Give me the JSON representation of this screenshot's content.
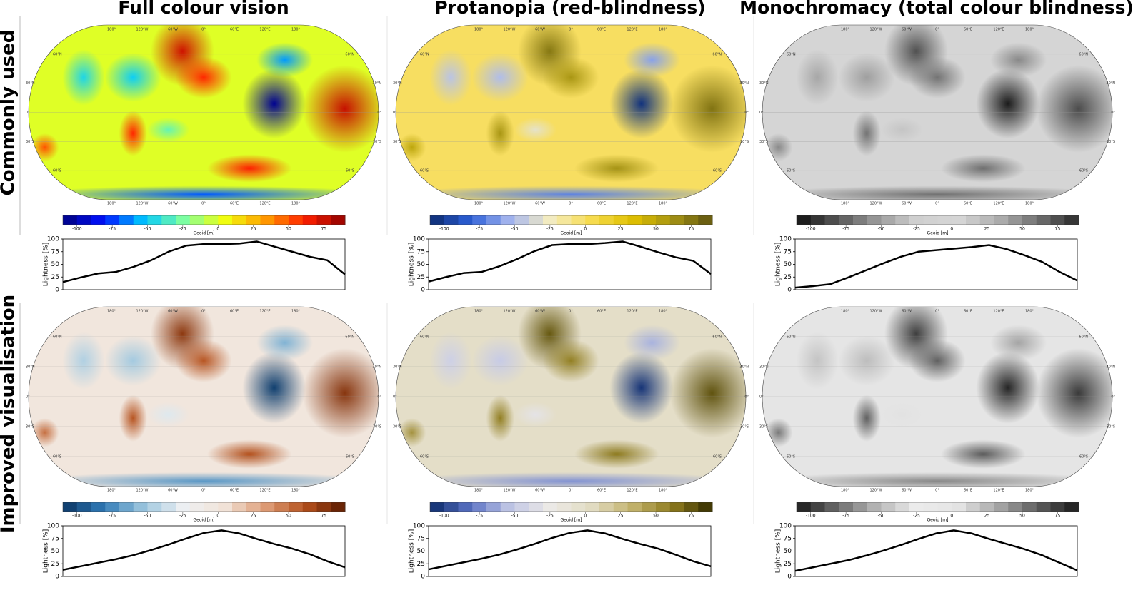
{
  "column_titles": [
    "Full colour vision",
    "Protanopia (red-blindness)",
    "Monochromacy (total colour blindness)"
  ],
  "row_labels": [
    "Commonly used",
    "Improved visualisation"
  ],
  "map_labels": {
    "lon": [
      "180°",
      "120°W",
      "60°W",
      "0°",
      "60°E",
      "120°E",
      "180°"
    ],
    "lat": [
      "60°N",
      "30°N",
      "0°",
      "30°S",
      "60°S"
    ]
  },
  "colorbar": {
    "label": "Geoid [m]",
    "lim": [
      -110,
      90
    ],
    "ticks": [
      -100,
      -75,
      -50,
      -25,
      0,
      25,
      50,
      75
    ]
  },
  "colormaps": [
    [
      "#00007f",
      "#0010ff",
      "#00c8ff",
      "#7fffa0",
      "#f0ff10",
      "#ffa000",
      "#ff2000",
      "#8f0000"
    ],
    [
      "#0d2b6e",
      "#2c5fd8",
      "#a8b8ef",
      "#f4ecc0",
      "#f7dc50",
      "#e0c000",
      "#a69414",
      "#5e5410"
    ],
    [
      "#111111",
      "#555555",
      "#9a9a9a",
      "#d0d0d0",
      "#d6d6d6",
      "#b0b0b0",
      "#707070",
      "#2a2a2a"
    ],
    [
      "#0b3564",
      "#2f7ab6",
      "#9cc6de",
      "#eef0f2",
      "#f1e4d9",
      "#df9f7a",
      "#b5511d",
      "#5a1a00"
    ],
    [
      "#0b2a6a",
      "#5a72c4",
      "#c3c8e6",
      "#eceae6",
      "#e2dcc3",
      "#c4b46f",
      "#8f7c1f",
      "#332c00"
    ],
    [
      "#1a1a1a",
      "#6a6a6a",
      "#b8b8b8",
      "#ececec",
      "#e4e4e4",
      "#a8a8a8",
      "#5c5c5c",
      "#1a1a1a"
    ]
  ],
  "chart_data": [
    {
      "type": "line",
      "ylabel": "Lightness [%]",
      "ylim": [
        0,
        100
      ],
      "yticks": [
        0,
        25,
        50,
        75,
        100
      ],
      "color": "#000000",
      "values": [
        15,
        24,
        32,
        35,
        45,
        58,
        75,
        87,
        90,
        90,
        91,
        95,
        85,
        75,
        65,
        58,
        30
      ]
    },
    {
      "type": "line",
      "ylabel": "Lightness [%]",
      "ylim": [
        0,
        100
      ],
      "yticks": [
        0,
        25,
        50,
        75,
        100
      ],
      "color": "#000000",
      "values": [
        16,
        25,
        33,
        35,
        46,
        60,
        76,
        88,
        90,
        90,
        92,
        95,
        85,
        74,
        64,
        57,
        31
      ]
    },
    {
      "type": "line",
      "ylabel": "Lightness [%]",
      "ylim": [
        0,
        100
      ],
      "yticks": [
        0,
        25,
        50,
        75,
        100
      ],
      "color": "#000000",
      "values": [
        4,
        7,
        11,
        24,
        38,
        52,
        65,
        75,
        78,
        81,
        84,
        88,
        80,
        68,
        55,
        35,
        18
      ]
    },
    {
      "type": "line",
      "ylabel": "Lightness [%]",
      "ylim": [
        0,
        100
      ],
      "yticks": [
        0,
        25,
        50,
        75,
        100
      ],
      "color": "#000000",
      "values": [
        13,
        20,
        27,
        34,
        42,
        52,
        63,
        75,
        86,
        91,
        85,
        74,
        64,
        55,
        44,
        30,
        18
      ]
    },
    {
      "type": "line",
      "ylabel": "Lightness [%]",
      "ylim": [
        0,
        100
      ],
      "yticks": [
        0,
        25,
        50,
        75,
        100
      ],
      "color": "#000000",
      "values": [
        14,
        21,
        28,
        35,
        43,
        53,
        64,
        76,
        86,
        91,
        85,
        74,
        64,
        55,
        43,
        30,
        20
      ]
    },
    {
      "type": "line",
      "ylabel": "Lightness [%]",
      "ylim": [
        0,
        100
      ],
      "yticks": [
        0,
        25,
        50,
        75,
        100
      ],
      "color": "#000000",
      "values": [
        11,
        18,
        25,
        32,
        41,
        51,
        62,
        74,
        85,
        91,
        85,
        74,
        64,
        54,
        42,
        27,
        12
      ]
    }
  ]
}
